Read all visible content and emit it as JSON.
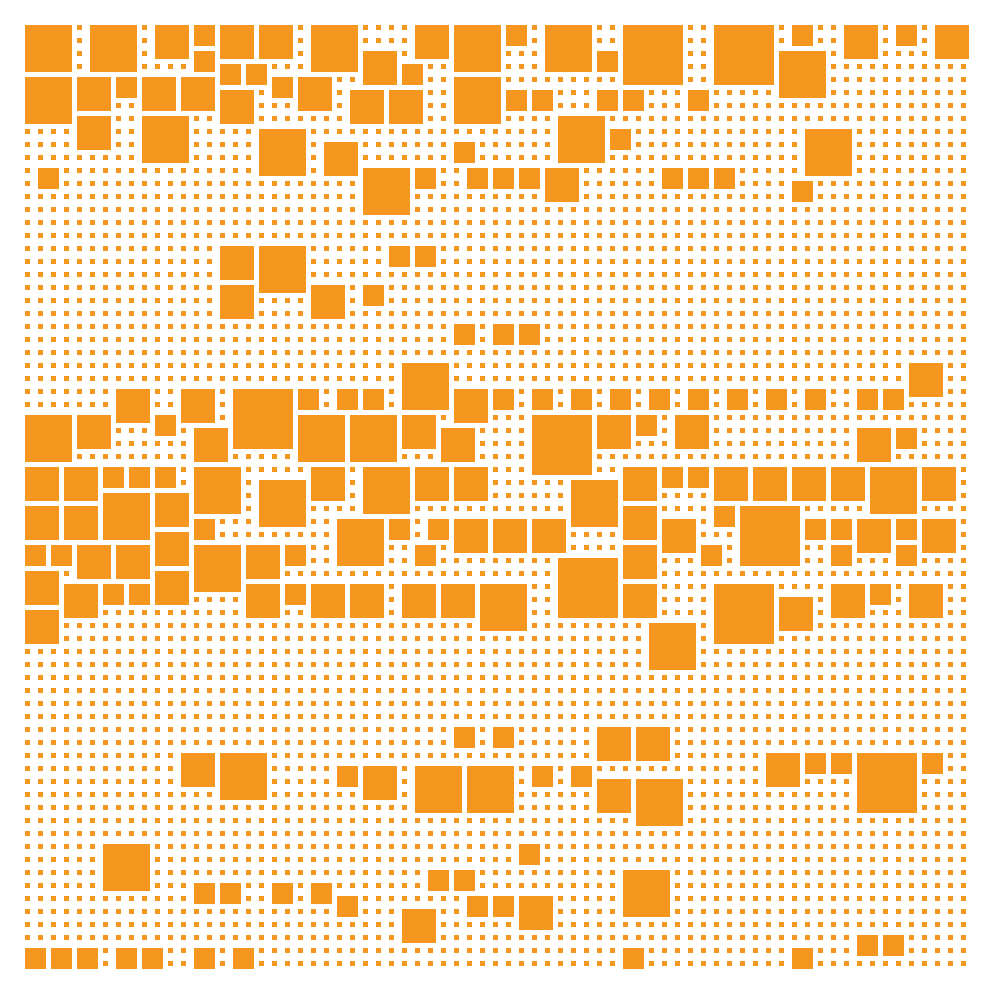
{
  "colors": {
    "background": "#ffffff",
    "tile": "#f5961f"
  },
  "artwork": {
    "kind": "square-mosaic",
    "text": []
  }
}
